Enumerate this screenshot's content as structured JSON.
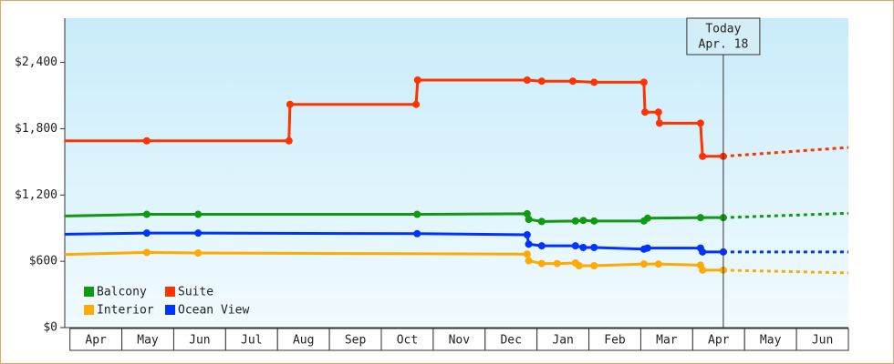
{
  "chart_data": {
    "type": "line",
    "categories": [
      "Apr",
      "May",
      "Jun",
      "Jul",
      "Aug",
      "Sep",
      "Oct",
      "Nov",
      "Dec",
      "Jan",
      "Feb",
      "Mar",
      "Apr",
      "May",
      "Jun"
    ],
    "xlim": [
      -0.1,
      15
    ],
    "ylim": [
      0,
      2800
    ],
    "yticks": [
      {
        "value": 0,
        "label": "$0"
      },
      {
        "value": 600,
        "label": "$600"
      },
      {
        "value": 1200,
        "label": "$1,200"
      },
      {
        "value": 1800,
        "label": "$1,800"
      },
      {
        "value": 2400,
        "label": "$2,400"
      }
    ],
    "legend": "lower-left",
    "annotation": {
      "x": 12.59,
      "lines": [
        "Today",
        "Apr. 18"
      ]
    },
    "series": [
      {
        "name": "Balcony",
        "color": "#119911",
        "x": [
          -0.1,
          1.48,
          2.47,
          6.69,
          8.81,
          8.84,
          9.09,
          9.74,
          9.89,
          10.1,
          11.06,
          11.13,
          12.15,
          12.59
        ],
        "values": [
          1010,
          1025,
          1025,
          1025,
          1030,
          980,
          960,
          965,
          970,
          965,
          965,
          990,
          995,
          995
        ],
        "forecast_x": [
          12.59,
          15
        ],
        "forecast_values": [
          995,
          1035
        ]
      },
      {
        "name": "Suite",
        "color": "#ff3300",
        "x": [
          -0.1,
          1.48,
          4.22,
          4.24,
          6.67,
          6.7,
          8.81,
          9.09,
          9.69,
          10.1,
          11.06,
          11.08,
          11.34,
          11.36,
          12.15,
          12.19,
          12.59
        ],
        "values": [
          1690,
          1690,
          1690,
          2020,
          2020,
          2240,
          2240,
          2230,
          2230,
          2220,
          2220,
          1950,
          1950,
          1850,
          1850,
          1550,
          1550
        ],
        "forecast_x": [
          12.59,
          15
        ],
        "forecast_values": [
          1550,
          1630
        ]
      },
      {
        "name": "Interior",
        "color": "#ffaa00",
        "x": [
          -0.1,
          1.48,
          2.47,
          8.81,
          8.84,
          9.09,
          9.39,
          9.74,
          9.81,
          10.1,
          11.06,
          11.34,
          12.15,
          12.19,
          12.59
        ],
        "values": [
          662,
          680,
          675,
          665,
          605,
          580,
          580,
          585,
          560,
          560,
          575,
          575,
          565,
          520,
          520
        ],
        "forecast_x": [
          12.59,
          15
        ],
        "forecast_values": [
          520,
          495
        ]
      },
      {
        "name": "Ocean View",
        "color": "#0033ff",
        "x": [
          -0.1,
          1.48,
          2.47,
          6.69,
          8.81,
          8.84,
          9.09,
          9.74,
          9.89,
          10.1,
          11.06,
          11.13,
          12.15,
          12.19,
          12.59
        ],
        "values": [
          845,
          855,
          855,
          850,
          840,
          755,
          740,
          740,
          725,
          725,
          710,
          720,
          720,
          685,
          685
        ],
        "forecast_x": [
          12.59,
          15
        ],
        "forecast_values": [
          685,
          685
        ]
      }
    ]
  }
}
